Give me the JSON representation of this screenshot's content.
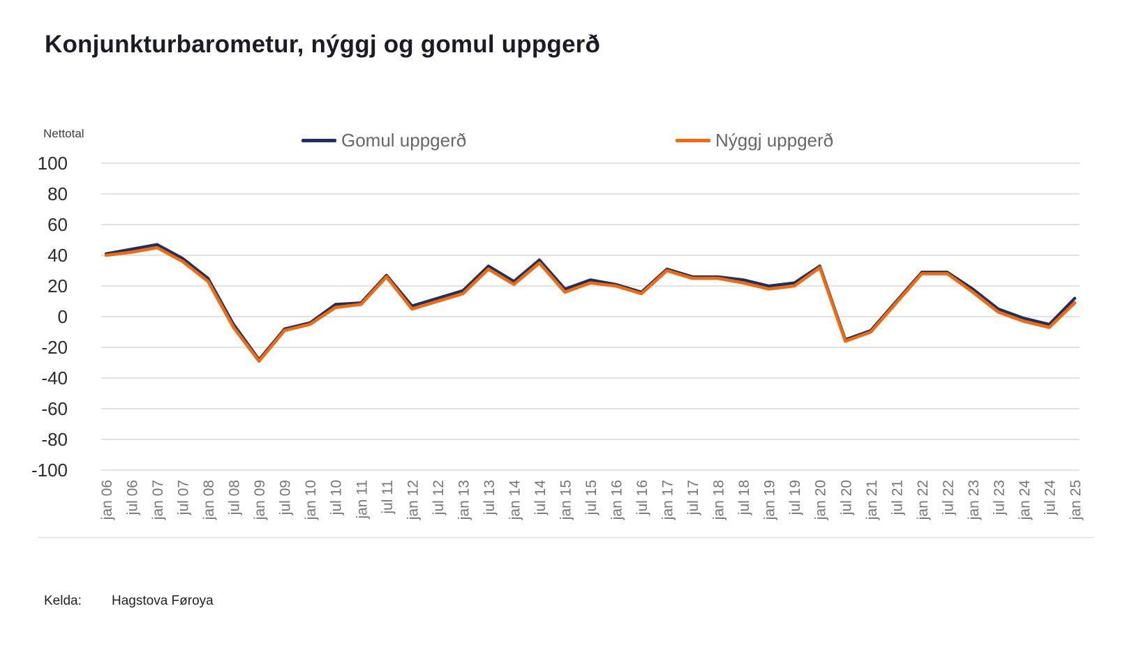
{
  "title": "Konjunkturbarometur, nýggj og gomul uppgerð",
  "y_axis_title": "Nettotal",
  "footer": {
    "source_label": "Kelda:",
    "source_value": "Hagstova Føroya"
  },
  "colors": {
    "series_old": "#1b3160",
    "series_new": "#f4690e",
    "grid": "#d9d9d9",
    "y_tick_text": "#2b2b2b",
    "x_tick_text": "#757575",
    "legend_text": "#66676b",
    "title_text": "#1b1c26"
  },
  "chart_data": {
    "type": "line",
    "title": "Konjunkturbarometur, nýggj og gomul uppgerð",
    "ylabel": "Nettotal",
    "ylim": [
      -100,
      100
    ],
    "yticks": [
      100,
      80,
      60,
      40,
      20,
      0,
      -20,
      -40,
      -60,
      -80,
      -100
    ],
    "grid": "horizontal",
    "legend_position": "top",
    "categories": [
      "jan 06",
      "jul 06",
      "jan 07",
      "jul 07",
      "jan 08",
      "jul 08",
      "jan 09",
      "jul 09",
      "jan 10",
      "jul 10",
      "jan 11",
      "jul 11",
      "jan 12",
      "jul 12",
      "jan 13",
      "jul 13",
      "jan 14",
      "jul 14",
      "jan 15",
      "jul 15",
      "jan 16",
      "jul 16",
      "jan 17",
      "jul 17",
      "jan 18",
      "jul 18",
      "jan 19",
      "jul 19",
      "jan 20",
      "jul 20",
      "jan 21",
      "jul 21",
      "jan 22",
      "jul 22",
      "jan 23",
      "jul 23",
      "jan 24",
      "jul 24",
      "jan 25"
    ],
    "series": [
      {
        "name": "Gomul uppgerð",
        "color": "#1b3160",
        "values": [
          41,
          44,
          47,
          38,
          25,
          -5,
          -28,
          -8,
          -4,
          8,
          9,
          27,
          7,
          12,
          17,
          33,
          23,
          37,
          18,
          24,
          21,
          16,
          31,
          26,
          26,
          24,
          20,
          22,
          33,
          -15,
          -9,
          10,
          29,
          29,
          18,
          5,
          -1,
          -5,
          12
        ]
      },
      {
        "name": "Nýggj uppgerð",
        "color": "#f4690e",
        "values": [
          40,
          42,
          45,
          36,
          23,
          -7,
          -29,
          -9,
          -5,
          6,
          8,
          26,
          5,
          10,
          15,
          31,
          21,
          35,
          16,
          22,
          20,
          15,
          30,
          25,
          25,
          22,
          18,
          20,
          32,
          -16,
          -10,
          9,
          28,
          28,
          16,
          3,
          -3,
          -7,
          9
        ]
      }
    ]
  }
}
